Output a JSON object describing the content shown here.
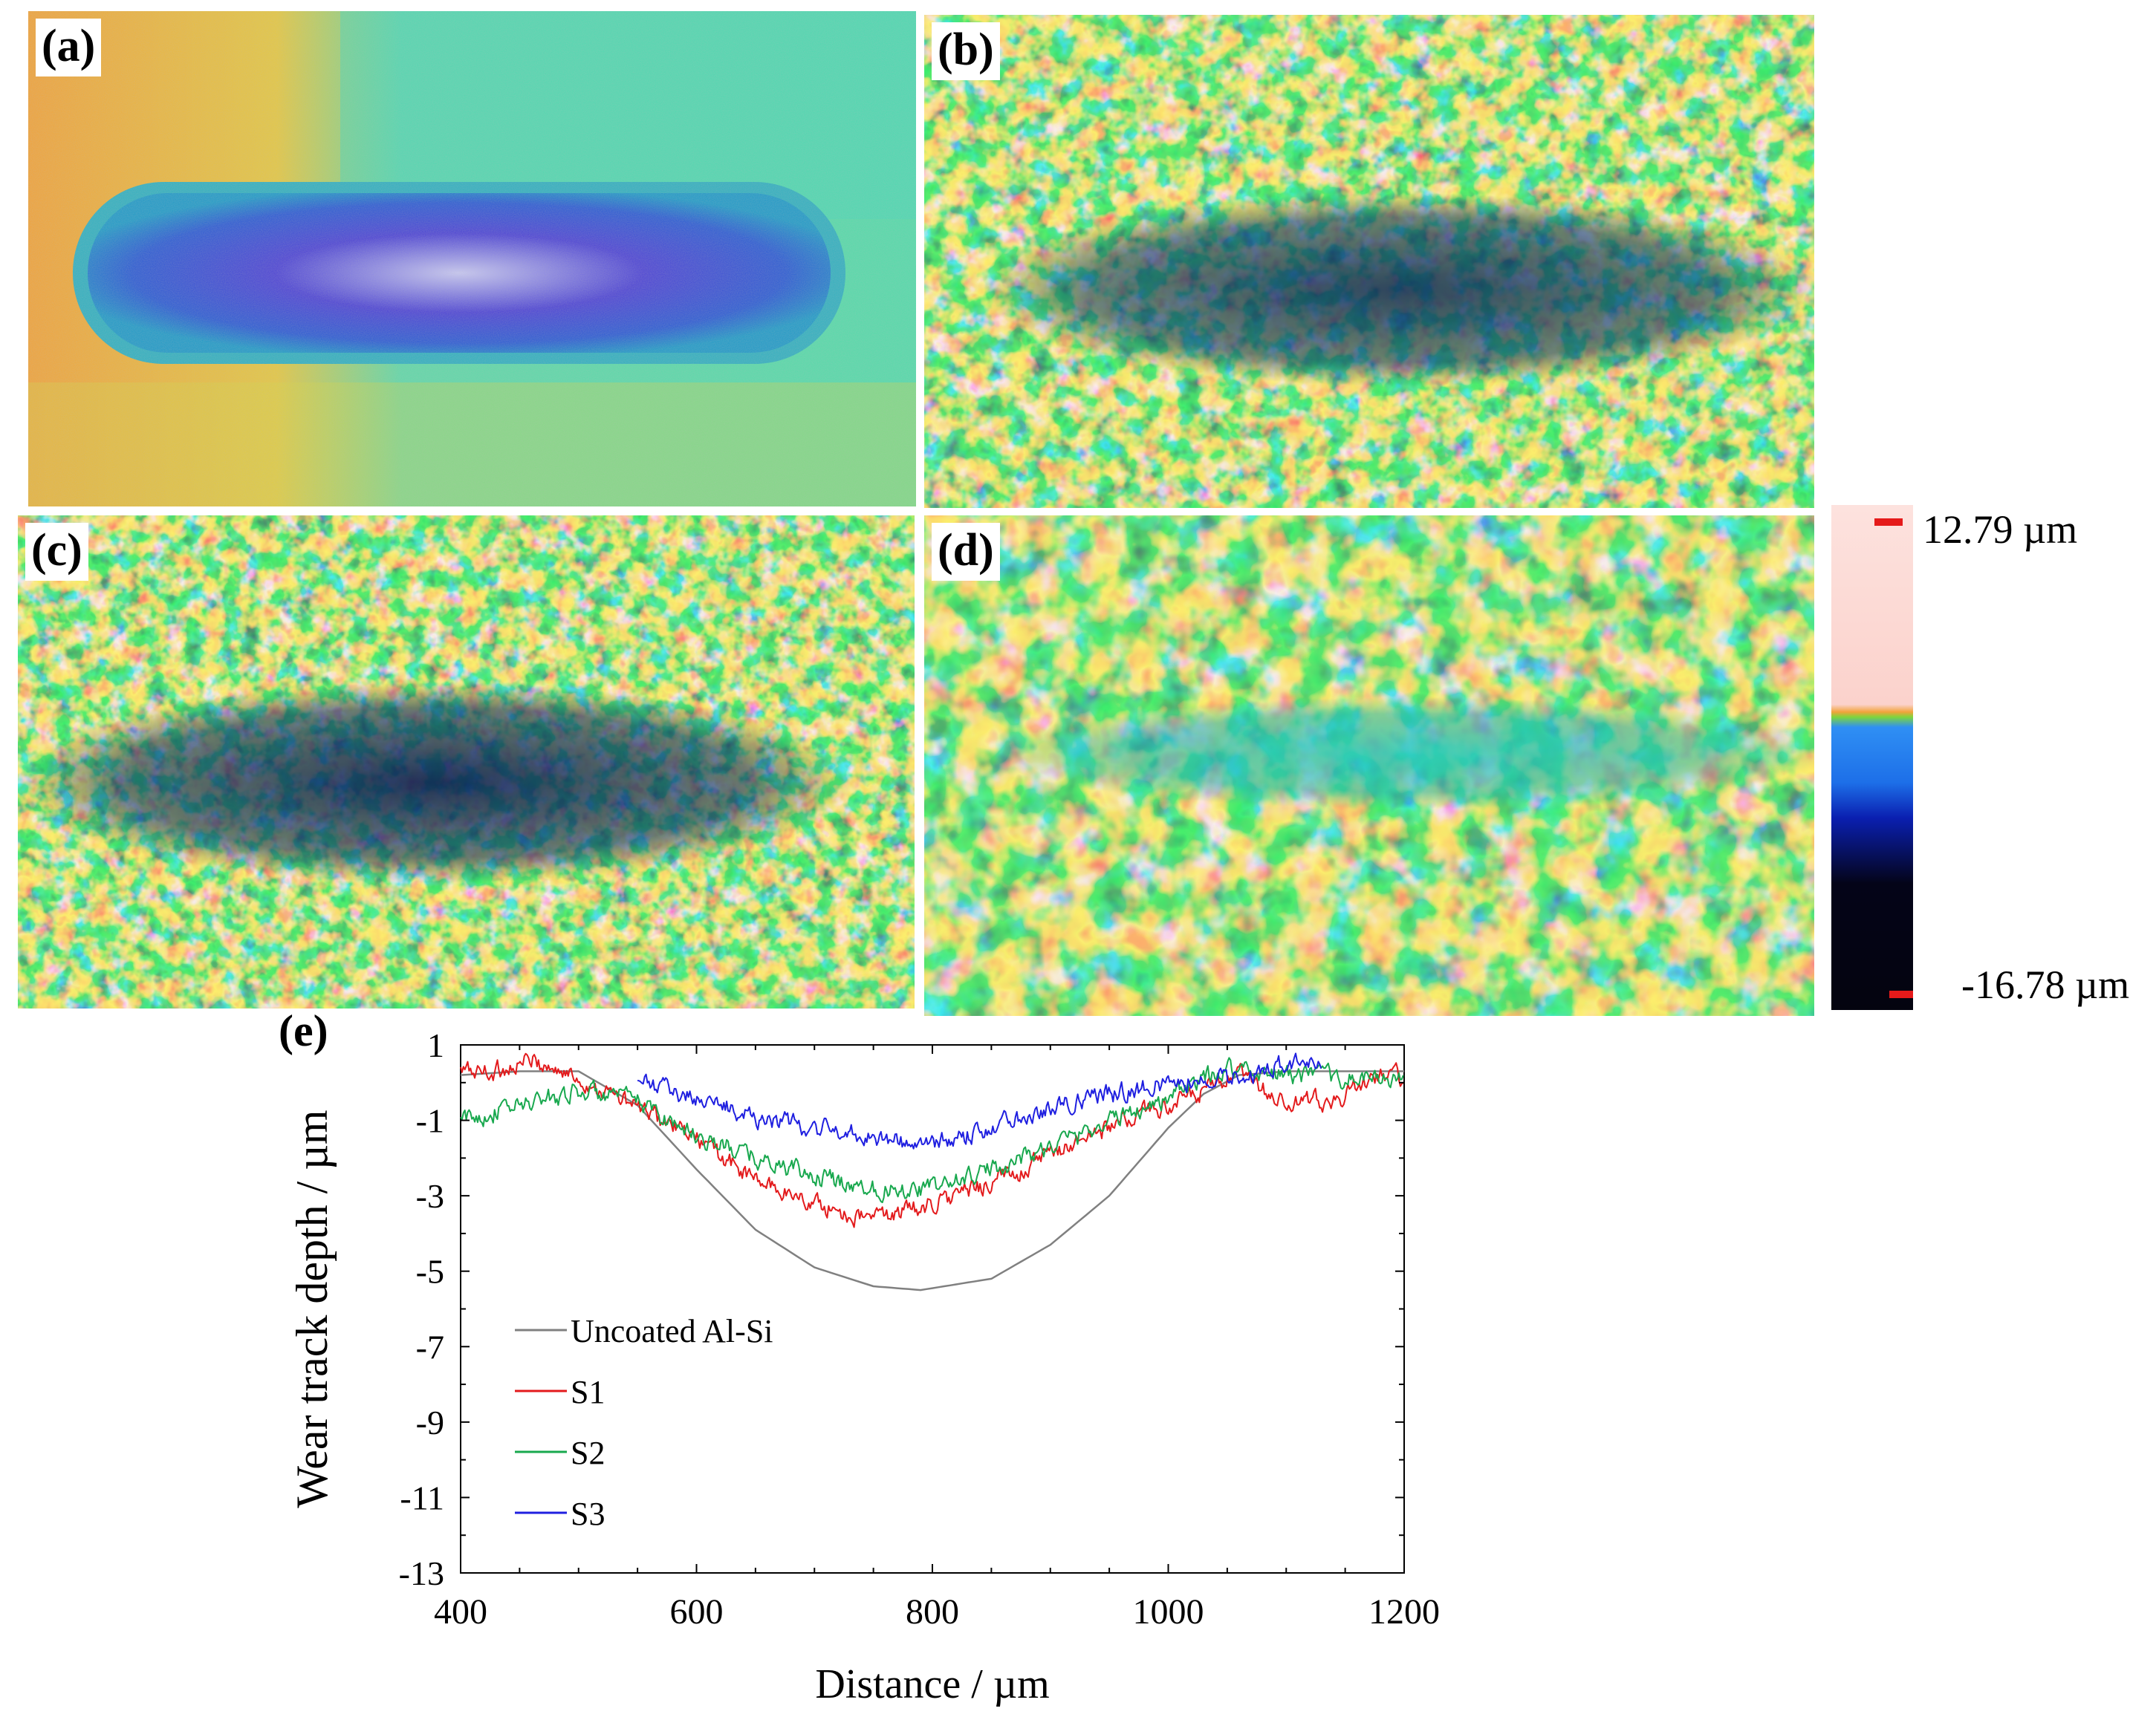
{
  "panels": [
    {
      "label": "(a)"
    },
    {
      "label": "(b)"
    },
    {
      "label": "(c)"
    },
    {
      "label": "(d)"
    }
  ],
  "colorbar": {
    "max_label": "12.79 µm",
    "min_label": "-16.78 µm",
    "colors": [
      "#fbdcd8",
      "#f2a33a",
      "#7dd63c",
      "#2f8ff4",
      "#0a1fb0",
      "#040418"
    ]
  },
  "chart_data": {
    "type": "line",
    "panel_label": "(e)",
    "title": "",
    "xlabel": "Distance  / µm",
    "ylabel": "Wear track depth / µm",
    "xlim": [
      400,
      1200
    ],
    "ylim": [
      -13,
      1
    ],
    "xticks": [
      400,
      600,
      800,
      1000,
      1200
    ],
    "yticks": [
      1,
      -1,
      -3,
      -5,
      -7,
      -9,
      -11,
      -13
    ],
    "grid": false,
    "legend_position": "lower-left",
    "series": [
      {
        "name": "Uncoated Al-Si",
        "color": "#808080",
        "x": [
          400,
          450,
          500,
          550,
          600,
          650,
          700,
          750,
          790,
          850,
          900,
          950,
          1000,
          1030,
          1060,
          1100,
          1200
        ],
        "y": [
          0.2,
          0.3,
          0.3,
          -0.6,
          -2.3,
          -3.9,
          -4.9,
          -5.4,
          -5.5,
          -5.2,
          -4.3,
          -3.0,
          -1.2,
          -0.3,
          0.2,
          0.3,
          0.3
        ]
      },
      {
        "name": "S1",
        "color": "#e31a1c",
        "x": [
          400,
          430,
          460,
          500,
          540,
          600,
          650,
          700,
          740,
          780,
          820,
          870,
          920,
          970,
          1020,
          1060,
          1100,
          1150,
          1180,
          1200
        ],
        "y": [
          0.3,
          0.3,
          0.6,
          0.1,
          -0.5,
          -1.5,
          -2.6,
          -3.2,
          -3.6,
          -3.4,
          -3.0,
          -2.4,
          -1.6,
          -0.9,
          -0.4,
          0.2,
          -0.6,
          -0.4,
          0.3,
          0.1
        ]
      },
      {
        "name": "S2",
        "color": "#18a84e",
        "x": [
          400,
          450,
          500,
          550,
          600,
          650,
          700,
          750,
          800,
          850,
          900,
          950,
          1000,
          1050,
          1100,
          1150,
          1200
        ],
        "y": [
          -1.0,
          -0.6,
          -0.2,
          -0.5,
          -1.4,
          -2.0,
          -2.5,
          -2.8,
          -2.8,
          -2.3,
          -1.7,
          -1.0,
          -0.4,
          0.4,
          0.2,
          0.1,
          0.1
        ]
      },
      {
        "name": "S3",
        "color": "#1f1fe0",
        "x": [
          550,
          600,
          650,
          700,
          750,
          790,
          820,
          870,
          920,
          970,
          1000,
          1030,
          1060,
          1100,
          1130
        ],
        "y": [
          0.0,
          -0.4,
          -0.9,
          -1.2,
          -1.4,
          -1.7,
          -1.5,
          -0.9,
          -0.5,
          -0.2,
          0.0,
          0.1,
          0.1,
          0.5,
          0.5
        ]
      }
    ]
  }
}
